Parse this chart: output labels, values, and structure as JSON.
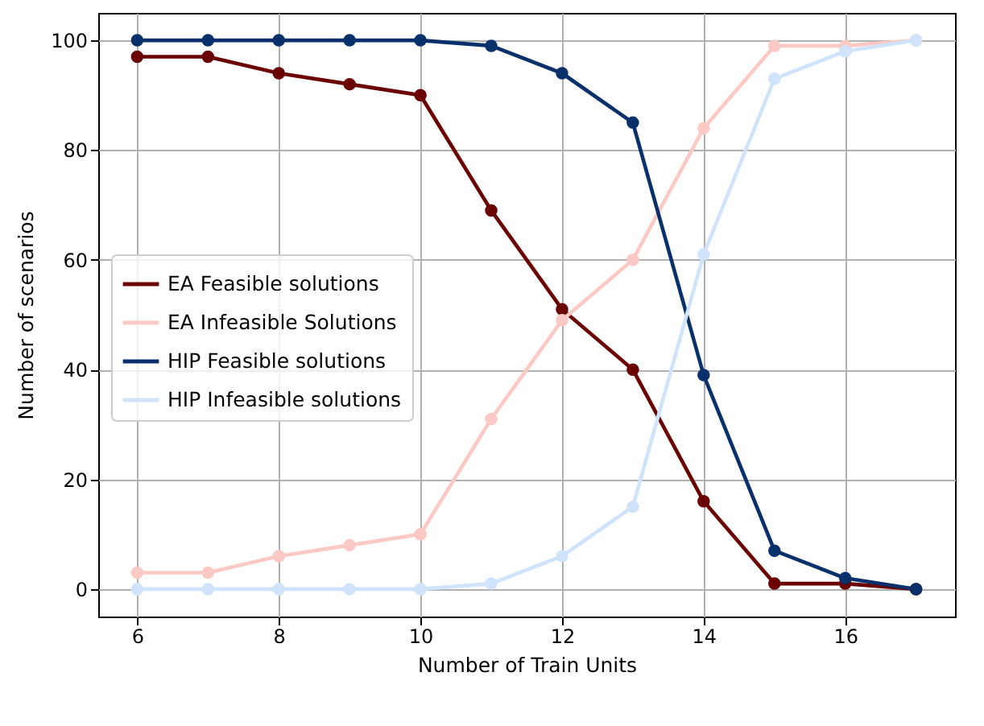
{
  "chart_data": {
    "type": "line",
    "xlabel": "Number of Train Units",
    "ylabel": "Number of scenarios",
    "x": [
      6,
      7,
      8,
      9,
      10,
      11,
      12,
      13,
      14,
      15,
      16,
      17
    ],
    "series": [
      {
        "name": "EA Feasible solutions",
        "color": "#6b0000",
        "values": [
          97,
          97,
          94,
          92,
          90,
          69,
          51,
          40,
          16,
          1,
          1,
          0
        ]
      },
      {
        "name": "EA Infeasible Solutions",
        "color": "#fcc9c5",
        "values": [
          3,
          3,
          6,
          8,
          10,
          31,
          49,
          60,
          84,
          99,
          99,
          100
        ]
      },
      {
        "name": "HIP Feasible solutions",
        "color": "#08306b",
        "values": [
          100,
          100,
          100,
          100,
          100,
          99,
          94,
          85,
          39,
          7,
          2,
          0
        ]
      },
      {
        "name": "HIP Infeasible solutions",
        "color": "#cfe4fa",
        "values": [
          0,
          0,
          0,
          0,
          0,
          1,
          6,
          15,
          61,
          93,
          98,
          100
        ]
      }
    ],
    "xlim": [
      5.45,
      17.55
    ],
    "ylim": [
      -5,
      105
    ],
    "xticks": [
      6,
      8,
      10,
      12,
      14,
      16
    ],
    "yticks": [
      0,
      20,
      40,
      60,
      80,
      100
    ],
    "grid": true,
    "legend": "center left",
    "marker": "circle",
    "line_style": "solid"
  }
}
